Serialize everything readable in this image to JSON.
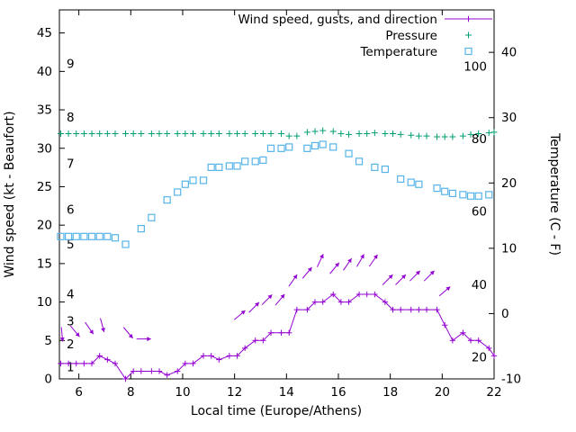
{
  "chart_data": {
    "type": "line",
    "xlabel": "Local time (Europe/Athens)",
    "ylabel_left": "Wind speed (kt - Beaufort)",
    "ylabel_right": "Temperature (C - F)",
    "x_range": [
      5.25,
      22
    ],
    "x_ticks": [
      6,
      8,
      10,
      12,
      14,
      16,
      18,
      20,
      22
    ],
    "y_left_range": [
      0,
      48
    ],
    "y_left_ticks": [
      0,
      5,
      10,
      15,
      20,
      25,
      30,
      35,
      40,
      45
    ],
    "y_right_range": [
      -10,
      46.5
    ],
    "y_right_ticks": [
      -10,
      0,
      10,
      20,
      30,
      40
    ],
    "beaufort_labels": [
      {
        "label": "1",
        "kt": 1.5
      },
      {
        "label": "2",
        "kt": 4.5
      },
      {
        "label": "3",
        "kt": 7.5
      },
      {
        "label": "4",
        "kt": 11
      },
      {
        "label": "5",
        "kt": 17.5
      },
      {
        "label": "6",
        "kt": 22
      },
      {
        "label": "7",
        "kt": 28
      },
      {
        "label": "8",
        "kt": 34
      },
      {
        "label": "9",
        "kt": 41
      }
    ],
    "fahrenheit_labels": [
      {
        "label": "20",
        "c": -6.7
      },
      {
        "label": "40",
        "c": 4.4
      },
      {
        "label": "60",
        "c": 15.6
      },
      {
        "label": "80",
        "c": 26.7
      },
      {
        "label": "100",
        "c": 37.8
      }
    ],
    "legend": [
      {
        "label": "Wind speed, gusts, and direction",
        "color": "#9400d3",
        "marker": "line-plus"
      },
      {
        "label": "Pressure",
        "color": "#009e73",
        "marker": "plus"
      },
      {
        "label": "Temperature",
        "color": "#56b4e9",
        "marker": "square"
      }
    ],
    "series": {
      "wind_speed": {
        "name": "Wind speed",
        "color": "#9400d3",
        "axis": "left",
        "points": [
          [
            5.3,
            2
          ],
          [
            5.6,
            2
          ],
          [
            5.9,
            2
          ],
          [
            6.2,
            2
          ],
          [
            6.5,
            2
          ],
          [
            6.8,
            3
          ],
          [
            7.1,
            2.5
          ],
          [
            7.4,
            2
          ],
          [
            7.8,
            0
          ],
          [
            8.1,
            1
          ],
          [
            8.4,
            1
          ],
          [
            8.8,
            1
          ],
          [
            9.1,
            1
          ],
          [
            9.4,
            0.5
          ],
          [
            9.8,
            1
          ],
          [
            10.1,
            2
          ],
          [
            10.4,
            2
          ],
          [
            10.8,
            3
          ],
          [
            11.1,
            3
          ],
          [
            11.4,
            2.5
          ],
          [
            11.8,
            3
          ],
          [
            12.1,
            3
          ],
          [
            12.4,
            4
          ],
          [
            12.8,
            5
          ],
          [
            13.1,
            5
          ],
          [
            13.4,
            6
          ],
          [
            13.8,
            6
          ],
          [
            14.1,
            6
          ],
          [
            14.4,
            9
          ],
          [
            14.8,
            9
          ],
          [
            15.1,
            10
          ],
          [
            15.4,
            10
          ],
          [
            15.8,
            11
          ],
          [
            16.1,
            10
          ],
          [
            16.4,
            10
          ],
          [
            16.8,
            11
          ],
          [
            17.1,
            11
          ],
          [
            17.4,
            11
          ],
          [
            17.8,
            10
          ],
          [
            18.1,
            9
          ],
          [
            18.4,
            9
          ],
          [
            18.8,
            9
          ],
          [
            19.1,
            9
          ],
          [
            19.4,
            9
          ],
          [
            19.8,
            9
          ],
          [
            20.1,
            7
          ],
          [
            20.4,
            5
          ],
          [
            20.8,
            6
          ],
          [
            21.1,
            5
          ],
          [
            21.4,
            5
          ],
          [
            21.8,
            4
          ],
          [
            22,
            3
          ]
        ]
      },
      "wind_direction_arrows": {
        "name": "Wind direction",
        "color": "#9400d3",
        "axis": "left",
        "arrows": [
          [
            5.35,
            5.8,
            -85
          ],
          [
            5.85,
            6.2,
            -50
          ],
          [
            6.4,
            6.6,
            -55
          ],
          [
            6.9,
            7.0,
            -75
          ],
          [
            7.9,
            6.0,
            -50
          ],
          [
            8.5,
            5.2,
            0
          ],
          [
            12.2,
            8.3,
            40
          ],
          [
            12.75,
            9.3,
            45
          ],
          [
            13.25,
            10.3,
            45
          ],
          [
            13.75,
            10.3,
            50
          ],
          [
            14.25,
            12.8,
            55
          ],
          [
            14.8,
            13.8,
            50
          ],
          [
            15.3,
            15.4,
            65
          ],
          [
            15.85,
            14.4,
            50
          ],
          [
            16.35,
            14.9,
            55
          ],
          [
            16.85,
            15.4,
            60
          ],
          [
            17.35,
            15.4,
            55
          ],
          [
            17.9,
            12.9,
            45
          ],
          [
            18.4,
            12.9,
            45
          ],
          [
            18.95,
            13.4,
            45
          ],
          [
            19.5,
            13.4,
            45
          ],
          [
            20.1,
            11.4,
            40
          ]
        ]
      },
      "pressure": {
        "name": "Pressure",
        "color": "#009e73",
        "axis": "left-display",
        "points": [
          [
            5.3,
            31.9
          ],
          [
            5.6,
            31.9
          ],
          [
            5.9,
            31.9
          ],
          [
            6.2,
            31.9
          ],
          [
            6.5,
            31.9
          ],
          [
            6.8,
            31.9
          ],
          [
            7.1,
            31.9
          ],
          [
            7.4,
            31.9
          ],
          [
            7.8,
            31.9
          ],
          [
            8.1,
            31.9
          ],
          [
            8.4,
            31.9
          ],
          [
            8.8,
            31.9
          ],
          [
            9.1,
            31.9
          ],
          [
            9.4,
            31.9
          ],
          [
            9.8,
            31.9
          ],
          [
            10.1,
            31.9
          ],
          [
            10.4,
            31.9
          ],
          [
            10.8,
            31.9
          ],
          [
            11.1,
            31.9
          ],
          [
            11.4,
            31.9
          ],
          [
            11.8,
            31.9
          ],
          [
            12.1,
            31.9
          ],
          [
            12.4,
            31.9
          ],
          [
            12.8,
            31.9
          ],
          [
            13.1,
            31.9
          ],
          [
            13.4,
            31.9
          ],
          [
            13.8,
            31.9
          ],
          [
            14.1,
            31.6
          ],
          [
            14.4,
            31.6
          ],
          [
            14.8,
            32.1
          ],
          [
            15.1,
            32.2
          ],
          [
            15.4,
            32.3
          ],
          [
            15.8,
            32.2
          ],
          [
            16.1,
            31.9
          ],
          [
            16.4,
            31.8
          ],
          [
            16.8,
            31.9
          ],
          [
            17.1,
            31.9
          ],
          [
            17.4,
            32.0
          ],
          [
            17.8,
            31.9
          ],
          [
            18.1,
            31.9
          ],
          [
            18.4,
            31.8
          ],
          [
            18.8,
            31.7
          ],
          [
            19.1,
            31.6
          ],
          [
            19.4,
            31.6
          ],
          [
            19.8,
            31.5
          ],
          [
            20.1,
            31.5
          ],
          [
            20.4,
            31.5
          ],
          [
            20.8,
            31.6
          ],
          [
            21.1,
            31.8
          ],
          [
            21.4,
            31.9
          ],
          [
            21.8,
            32.0
          ],
          [
            22,
            32.1
          ]
        ]
      },
      "temperature": {
        "name": "Temperature",
        "color": "#56b4e9",
        "axis": "right",
        "points": [
          [
            5.3,
            11.8
          ],
          [
            5.6,
            11.8
          ],
          [
            5.9,
            11.8
          ],
          [
            6.2,
            11.8
          ],
          [
            6.5,
            11.8
          ],
          [
            6.8,
            11.8
          ],
          [
            7.1,
            11.8
          ],
          [
            7.4,
            11.6
          ],
          [
            7.8,
            10.6
          ],
          [
            8.4,
            13.0
          ],
          [
            8.8,
            14.7
          ],
          [
            9.4,
            17.4
          ],
          [
            9.8,
            18.6
          ],
          [
            10.1,
            19.8
          ],
          [
            10.4,
            20.4
          ],
          [
            10.8,
            20.4
          ],
          [
            11.1,
            22.4
          ],
          [
            11.4,
            22.4
          ],
          [
            11.8,
            22.6
          ],
          [
            12.1,
            22.6
          ],
          [
            12.4,
            23.3
          ],
          [
            12.8,
            23.3
          ],
          [
            13.1,
            23.5
          ],
          [
            13.4,
            25.3
          ],
          [
            13.8,
            25.3
          ],
          [
            14.1,
            25.5
          ],
          [
            14.8,
            25.3
          ],
          [
            15.1,
            25.7
          ],
          [
            15.4,
            25.9
          ],
          [
            15.8,
            25.5
          ],
          [
            16.4,
            24.5
          ],
          [
            16.8,
            23.3
          ],
          [
            17.4,
            22.4
          ],
          [
            17.8,
            22.1
          ],
          [
            18.4,
            20.6
          ],
          [
            18.8,
            20.1
          ],
          [
            19.1,
            19.8
          ],
          [
            19.8,
            19.2
          ],
          [
            20.1,
            18.7
          ],
          [
            20.4,
            18.4
          ],
          [
            20.8,
            18.2
          ],
          [
            21.1,
            18.0
          ],
          [
            21.4,
            18.0
          ],
          [
            21.8,
            18.2
          ]
        ]
      }
    }
  }
}
